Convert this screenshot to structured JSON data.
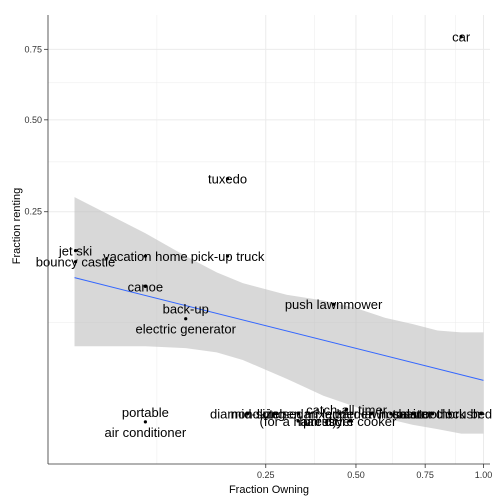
{
  "chart_data": {
    "type": "scatter",
    "title": "",
    "xlabel": "Fraction Owning",
    "ylabel": "Fraction renting",
    "x_scale": "sqrt",
    "y_scale": "sqrt",
    "xlim": [
      0,
      1.03
    ],
    "ylim": [
      -0.0047,
      0.89
    ],
    "x_ticks": [
      0.25,
      0.5,
      0.75,
      1.0
    ],
    "x_tick_labels": [
      "0.25",
      "0.50",
      "0.75",
      "1.00"
    ],
    "y_ticks": [
      0.25,
      0.5,
      0.75
    ],
    "y_tick_labels": [
      "0.25",
      "0.50",
      "0.75"
    ],
    "grid": true,
    "background": "#ffffff",
    "grid_color": "#ebebeb",
    "trend_color": "#3366ff",
    "ribbon_color": "#bebebe",
    "trend": {
      "x": [
        0.0037,
        1.0
      ],
      "y": [
        0.1235,
        0.0144
      ]
    },
    "ribbon": {
      "x": [
        0.0037,
        0.05,
        0.1,
        0.15,
        0.2,
        0.3,
        0.4,
        0.5,
        0.6,
        0.7,
        0.8,
        0.9,
        1.0
      ],
      "upper": [
        0.284,
        0.204,
        0.16,
        0.132,
        0.115,
        0.098,
        0.09,
        0.08,
        0.068,
        0.061,
        0.054,
        0.052,
        0.052
      ],
      "lower": [
        0.0387,
        0.0388,
        0.0371,
        0.0335,
        0.0275,
        0.0153,
        0.0073,
        0.0036,
        0.0012,
        0.0004,
        0.0001,
        0.0,
        0.0
      ]
    },
    "points": [
      {
        "label": "car",
        "x": 0.9,
        "y": 0.8
      },
      {
        "label": "tuxedo",
        "x": 0.17,
        "y": 0.33
      },
      {
        "label": "jet ski",
        "x": 0.004,
        "y": 0.17
      },
      {
        "label": "bouncy castle",
        "x": 0.004,
        "y": 0.15
      },
      {
        "label": "vacation home",
        "x": 0.05,
        "y": 0.16
      },
      {
        "label": "pick-up truck",
        "x": 0.17,
        "y": 0.16
      },
      {
        "label": "canoe",
        "x": 0.05,
        "y": 0.11
      },
      {
        "label": "back-up\nelectric generator",
        "x": 0.1,
        "y": 0.067
      },
      {
        "label": "push lawnmower",
        "x": 0.43,
        "y": 0.085
      },
      {
        "label": "portable\nair conditioner",
        "x": 0.05,
        "y": 0.0007
      },
      {
        "label": "catch-all timer",
        "x": 0.47,
        "y": 0.003
      },
      {
        "label": "diamond ring",
        "x": 0.21,
        "y": 0.002
      },
      {
        "label": "mid-size sedan",
        "x": 0.27,
        "y": 0.002
      },
      {
        "label": "kitchen mixer",
        "x": 0.33,
        "y": 0.002
      },
      {
        "label": "ladder",
        "x": 0.45,
        "y": 0.002
      },
      {
        "label": "garden hose",
        "x": 0.55,
        "y": 0.002
      },
      {
        "label": "lawn chair",
        "x": 0.62,
        "y": 0.002
      },
      {
        "label": "toaster",
        "x": 0.7,
        "y": 0.002
      },
      {
        "label": "alarm clock",
        "x": 0.78,
        "y": 0.002
      },
      {
        "label": "toothbrush",
        "x": 0.85,
        "y": 0.002
      },
      {
        "label": "bed",
        "x": 0.99,
        "y": 0.002
      },
      {
        "label": "(for a haircut)",
        "x": 0.33,
        "y": 0.0008
      },
      {
        "label": "hair dryer",
        "x": 0.41,
        "y": 0.0008
      },
      {
        "label": "pressure cooker",
        "x": 0.48,
        "y": 0.0008
      }
    ]
  }
}
